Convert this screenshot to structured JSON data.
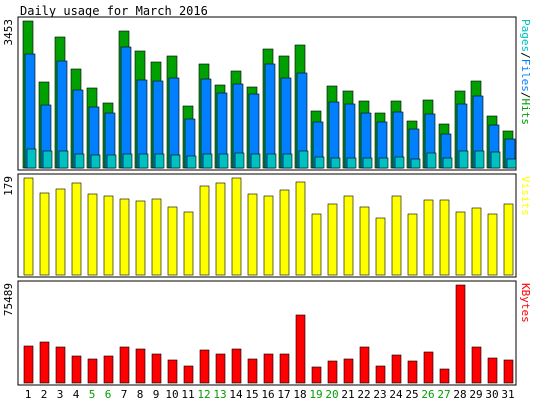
{
  "title": "Daily usage for March 2016",
  "colors": {
    "hits": "#00a000",
    "files": "#0080ff",
    "pages": "#00c0c0",
    "visits": "#ffff00",
    "kbytes": "#ff0000",
    "weekend_label": "#00a000",
    "weekday_label": "#000000",
    "frame": "#000000"
  },
  "chart_data": [
    {
      "type": "bar",
      "panel": "hits-files-pages",
      "categories": [
        "1",
        "2",
        "3",
        "4",
        "5",
        "6",
        "7",
        "8",
        "9",
        "10",
        "11",
        "12",
        "13",
        "14",
        "15",
        "16",
        "17",
        "18",
        "19",
        "20",
        "21",
        "22",
        "23",
        "24",
        "25",
        "26",
        "27",
        "28",
        "29",
        "30",
        "31"
      ],
      "weekend_days": [
        "5",
        "6",
        "12",
        "13",
        "19",
        "20",
        "26",
        "27"
      ],
      "max_label": "3453",
      "ylim": [
        0,
        3453
      ],
      "series": [
        {
          "name": "Hits",
          "values": [
            3453,
            2030,
            3070,
            2330,
            1870,
            1530,
            3220,
            2740,
            2500,
            2620,
            1450,
            2440,
            1940,
            2280,
            1910,
            2800,
            2620,
            2880,
            1340,
            1920,
            1820,
            1570,
            1290,
            1570,
            1100,
            1600,
            1030,
            1800,
            2040,
            1220,
            860
          ]
        },
        {
          "name": "Files",
          "values": [
            2670,
            1480,
            2510,
            1830,
            1430,
            1290,
            2850,
            2070,
            2050,
            2120,
            1160,
            2080,
            1750,
            1980,
            1740,
            2440,
            2120,
            2230,
            1090,
            1560,
            1510,
            1290,
            1070,
            1310,
            920,
            1270,
            810,
            1510,
            1700,
            1020,
            690
          ]
        },
        {
          "name": "Pages",
          "values": [
            440,
            410,
            410,
            330,
            310,
            310,
            340,
            320,
            330,
            310,
            290,
            340,
            320,
            350,
            320,
            340,
            330,
            390,
            260,
            240,
            240,
            240,
            230,
            250,
            220,
            350,
            230,
            390,
            400,
            380,
            220
          ]
        }
      ],
      "right_label_parts": [
        {
          "text": "Pages",
          "color_key": "pages"
        },
        {
          "text": "/",
          "color_key": "frame"
        },
        {
          "text": "Files",
          "color_key": "files"
        },
        {
          "text": "/",
          "color_key": "frame"
        },
        {
          "text": "Hits",
          "color_key": "hits"
        }
      ]
    },
    {
      "type": "bar",
      "panel": "visits",
      "categories": [
        "1",
        "2",
        "3",
        "4",
        "5",
        "6",
        "7",
        "8",
        "9",
        "10",
        "11",
        "12",
        "13",
        "14",
        "15",
        "16",
        "17",
        "18",
        "19",
        "20",
        "21",
        "22",
        "23",
        "24",
        "25",
        "26",
        "27",
        "28",
        "29",
        "30",
        "31"
      ],
      "max_label": "179",
      "ylim": [
        0,
        179
      ],
      "series": [
        {
          "name": "Visits",
          "values": [
            179,
            151,
            158,
            169,
            149,
            146,
            141,
            136,
            141,
            126,
            116,
            164,
            169,
            179,
            149,
            146,
            156,
            171,
            113,
            131,
            146,
            126,
            106,
            146,
            113,
            138,
            139,
            117,
            123,
            113,
            131
          ]
        }
      ],
      "right_label_parts": [
        {
          "text": "Visits",
          "color_key": "visits"
        }
      ]
    },
    {
      "type": "bar",
      "panel": "kbytes",
      "categories": [
        "1",
        "2",
        "3",
        "4",
        "5",
        "6",
        "7",
        "8",
        "9",
        "10",
        "11",
        "12",
        "13",
        "14",
        "15",
        "16",
        "17",
        "18",
        "19",
        "20",
        "21",
        "22",
        "23",
        "24",
        "25",
        "26",
        "27",
        "28",
        "29",
        "30",
        "31"
      ],
      "max_label": "75489",
      "ylim": [
        0,
        75489
      ],
      "series": [
        {
          "name": "KBytes",
          "values": [
            28600,
            31400,
            27400,
            21000,
            18700,
            21000,
            27400,
            26300,
            22500,
            17700,
            12800,
            25600,
            22000,
            26400,
            18700,
            22500,
            22000,
            52300,
            12400,
            17000,
            18200,
            27400,
            13200,
            21800,
            17000,
            23600,
            10500,
            75489,
            27400,
            19500,
            17700
          ]
        }
      ],
      "right_label_parts": [
        {
          "text": "KBytes",
          "color_key": "kbytes"
        }
      ]
    }
  ]
}
